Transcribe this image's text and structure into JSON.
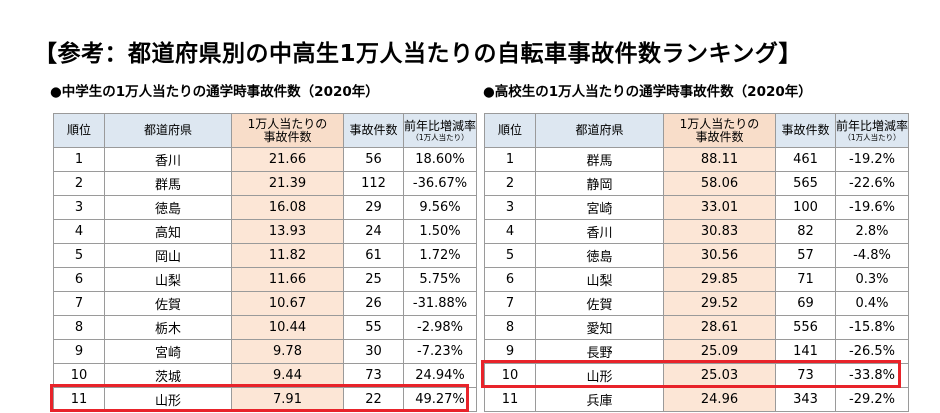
{
  "title": "【参考：都道府県別の中高生1万人当たりの自転車事故件数ランキング】",
  "junior": {
    "subtitle": "●中学生の1万人当たりの通学時事故件数（2020年）",
    "headers": {
      "rank": "順位",
      "prefecture": "都道府県",
      "per10k_line1": "1万人当たりの",
      "per10k_line2": "事故件数",
      "count": "事故件数",
      "yoy_line1": "前年比増減率",
      "yoy_line2": "（1万人当たり）"
    },
    "rows": [
      {
        "rank": "1",
        "prefecture": "香川",
        "per10k": "21.66",
        "count": "56",
        "yoy": "18.60%"
      },
      {
        "rank": "2",
        "prefecture": "群馬",
        "per10k": "21.39",
        "count": "112",
        "yoy": "-36.67%"
      },
      {
        "rank": "3",
        "prefecture": "徳島",
        "per10k": "16.08",
        "count": "29",
        "yoy": "9.56%"
      },
      {
        "rank": "4",
        "prefecture": "高知",
        "per10k": "13.93",
        "count": "24",
        "yoy": "1.50%"
      },
      {
        "rank": "5",
        "prefecture": "岡山",
        "per10k": "11.82",
        "count": "61",
        "yoy": "1.72%"
      },
      {
        "rank": "6",
        "prefecture": "山梨",
        "per10k": "11.66",
        "count": "25",
        "yoy": "5.75%"
      },
      {
        "rank": "7",
        "prefecture": "佐賀",
        "per10k": "10.67",
        "count": "26",
        "yoy": "-31.88%"
      },
      {
        "rank": "8",
        "prefecture": "栃木",
        "per10k": "10.44",
        "count": "55",
        "yoy": "-2.98%"
      },
      {
        "rank": "9",
        "prefecture": "宮崎",
        "per10k": "9.78",
        "count": "30",
        "yoy": "-7.23%"
      },
      {
        "rank": "10",
        "prefecture": "茨城",
        "per10k": "9.44",
        "count": "73",
        "yoy": "24.94%"
      },
      {
        "rank": "11",
        "prefecture": "山形",
        "per10k": "7.91",
        "count": "22",
        "yoy": "49.27%"
      }
    ]
  },
  "senior": {
    "subtitle": "●高校生の1万人当たりの通学時事故件数（2020年）",
    "headers": {
      "rank": "順位",
      "prefecture": "都道府県",
      "per10k_line1": "1万人当たりの",
      "per10k_line2": "事故件数",
      "count": "事故件数",
      "yoy_line1": "前年比増減率",
      "yoy_line2": "（1万人当たり）"
    },
    "rows": [
      {
        "rank": "1",
        "prefecture": "群馬",
        "per10k": "88.11",
        "count": "461",
        "yoy": "-19.2%"
      },
      {
        "rank": "2",
        "prefecture": "静岡",
        "per10k": "58.06",
        "count": "565",
        "yoy": "-22.6%"
      },
      {
        "rank": "3",
        "prefecture": "宮崎",
        "per10k": "33.01",
        "count": "100",
        "yoy": "-19.6%"
      },
      {
        "rank": "4",
        "prefecture": "香川",
        "per10k": "30.83",
        "count": "82",
        "yoy": "2.8%"
      },
      {
        "rank": "5",
        "prefecture": "徳島",
        "per10k": "30.56",
        "count": "57",
        "yoy": "-4.8%"
      },
      {
        "rank": "6",
        "prefecture": "山梨",
        "per10k": "29.85",
        "count": "71",
        "yoy": "0.3%"
      },
      {
        "rank": "7",
        "prefecture": "佐賀",
        "per10k": "29.52",
        "count": "69",
        "yoy": "0.4%"
      },
      {
        "rank": "8",
        "prefecture": "愛知",
        "per10k": "28.61",
        "count": "556",
        "yoy": "-15.8%"
      },
      {
        "rank": "9",
        "prefecture": "長野",
        "per10k": "25.09",
        "count": "141",
        "yoy": "-26.5%"
      },
      {
        "rank": "10",
        "prefecture": "山形",
        "per10k": "25.03",
        "count": "73",
        "yoy": "-33.8%"
      },
      {
        "rank": "11",
        "prefecture": "兵庫",
        "per10k": "24.96",
        "count": "343",
        "yoy": "-29.2%"
      }
    ]
  },
  "colors": {
    "header_bg": "#dde7f1",
    "highlight_column": "#fce6d6",
    "highlight_box": "#e8232a"
  }
}
